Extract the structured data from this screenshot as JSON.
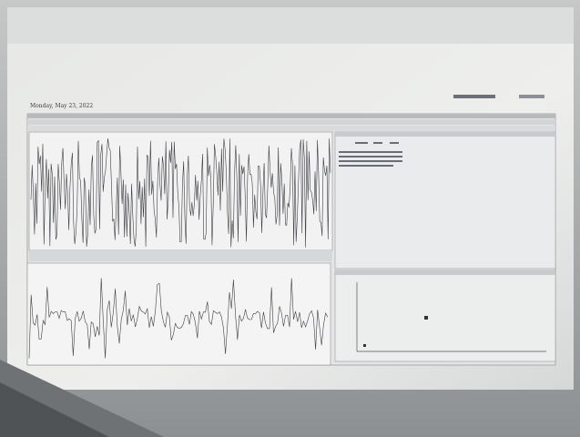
{
  "header": {
    "date": "Monday, May 23, 2022"
  }
}
